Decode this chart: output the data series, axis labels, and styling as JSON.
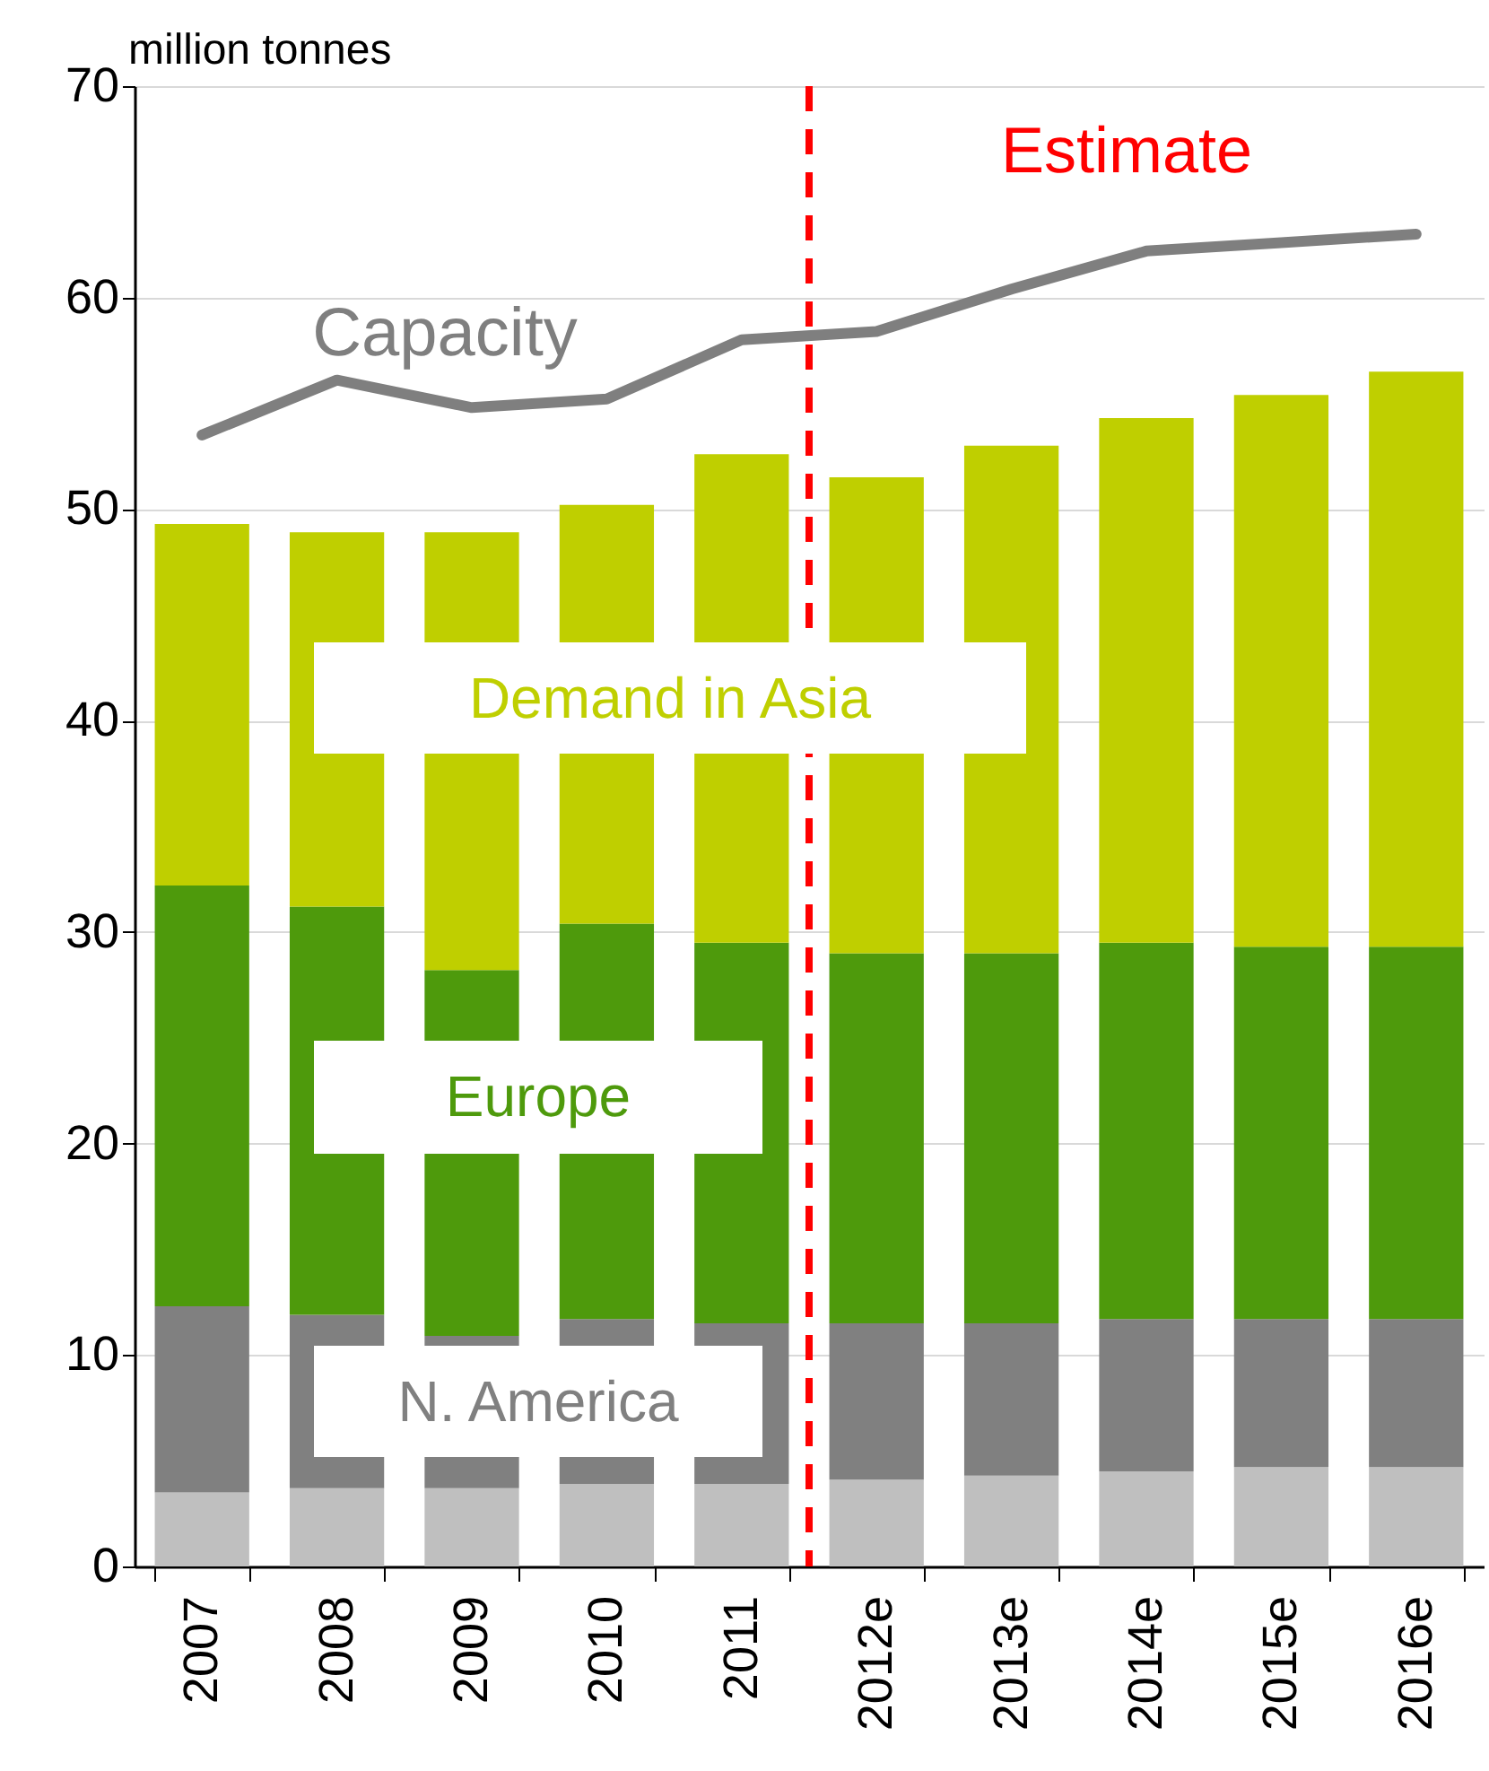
{
  "chart_data": {
    "type": "bar",
    "stacked": true,
    "ylabel": "million tonnes",
    "categories": [
      "2007",
      "2008",
      "2009",
      "2010",
      "2011",
      "2012e",
      "2013e",
      "2014e",
      "2015e",
      "2016e"
    ],
    "series": [
      {
        "color": "#bfbfbf",
        "values": [
          3.5,
          3.7,
          3.7,
          3.9,
          3.9,
          4.1,
          4.3,
          4.5,
          4.7,
          4.7
        ]
      },
      {
        "name": "N. America",
        "color": "#808080",
        "values": [
          8.8,
          8.2,
          7.2,
          7.8,
          7.6,
          7.4,
          7.2,
          7.2,
          7.0,
          7.0
        ]
      },
      {
        "name": "Europe",
        "color": "#4e9a0c",
        "values": [
          19.9,
          19.3,
          17.3,
          18.7,
          18.0,
          17.5,
          17.5,
          17.8,
          17.6,
          17.6
        ]
      },
      {
        "name": "Demand in Asia",
        "color": "#bfcf00",
        "values": [
          17.1,
          17.7,
          20.7,
          19.8,
          23.1,
          22.5,
          24.0,
          24.8,
          26.1,
          27.2
        ]
      },
      {
        "name": "Capacity",
        "type": "line",
        "color": "#7f7f7f",
        "values": [
          53.5,
          56.1,
          54.8,
          55.2,
          58.0,
          58.4,
          60.4,
          62.2,
          62.6,
          63.0
        ]
      }
    ],
    "ylim": [
      0,
      70
    ],
    "yticks": [
      0,
      10,
      20,
      30,
      40,
      50,
      60,
      70
    ],
    "grid": "y",
    "legend": false,
    "marker": "none",
    "line_style": "solid",
    "ref_lines": [
      {
        "axis": "x",
        "value": "2012e",
        "label": "Estimate",
        "color": "#ff0000",
        "line_style": "dashed"
      }
    ]
  }
}
